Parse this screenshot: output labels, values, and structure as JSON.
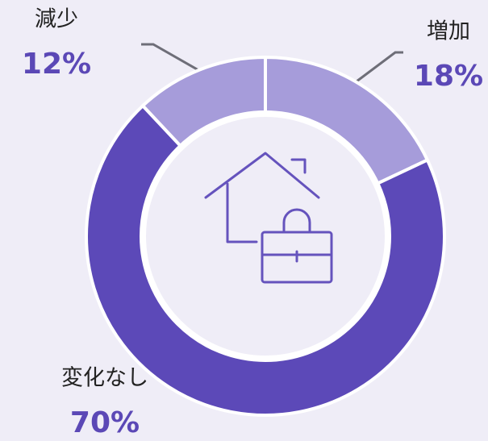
{
  "chart_data": {
    "type": "donut",
    "categories": [
      "増加",
      "変化なし",
      "減少"
    ],
    "values": [
      18,
      70,
      12
    ],
    "value_labels": [
      "18%",
      "70%",
      "12%"
    ],
    "colors": [
      "#a69cda",
      "#5c49b8",
      "#a69cda"
    ]
  }
}
